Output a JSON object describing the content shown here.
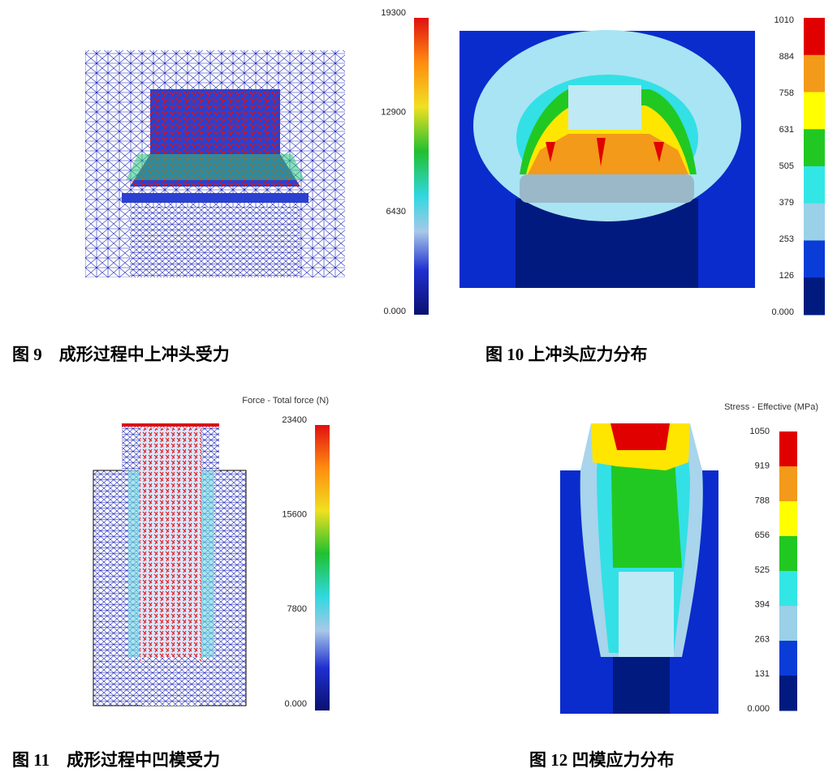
{
  "figures": [
    {
      "caption": "图 9　成形过程中上冲头受力",
      "legend_ticks": [
        "19300",
        "12900",
        "6430",
        "0.000"
      ]
    },
    {
      "caption": "图 10 上冲头应力分布",
      "legend_ticks": [
        "1010",
        "884",
        "758",
        "631",
        "505",
        "379",
        "253",
        "126",
        "0.000"
      ]
    },
    {
      "caption": "图 11　成形过程中凹模受力",
      "legend_title": "Force - Total force (N)",
      "legend_ticks": [
        "23400",
        "15600",
        "7800",
        "0.000"
      ]
    },
    {
      "caption": "图 12 凹模应力分布",
      "legend_title": "Stress - Effective (MPa)",
      "legend_ticks": [
        "1050",
        "919",
        "788",
        "656",
        "525",
        "394",
        "263",
        "131",
        "0.000"
      ]
    }
  ]
}
